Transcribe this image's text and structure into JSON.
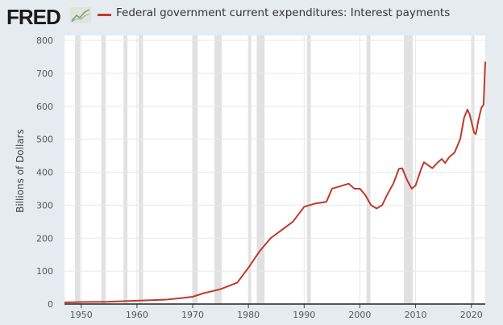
{
  "header": {
    "logo": "FRED",
    "logo_icon": "chart-trend-icon"
  },
  "chart_data": {
    "type": "line",
    "title": "",
    "xlabel": "",
    "ylabel": "Billions of Dollars",
    "xlim": [
      1947,
      2022.5
    ],
    "ylim": [
      0,
      800
    ],
    "grid": true,
    "legend_placement": "top",
    "yticks": [
      "0",
      "100",
      "200",
      "300",
      "400",
      "500",
      "600",
      "700",
      "800"
    ],
    "xticks": [
      "1950",
      "1960",
      "1970",
      "1980",
      "1990",
      "2000",
      "2010",
      "2020"
    ],
    "line_color": "#c0392b",
    "recession_color": "#e1e1e1",
    "recessions": [
      [
        1948.9,
        1949.8
      ],
      [
        1953.6,
        1954.4
      ],
      [
        1957.6,
        1958.3
      ],
      [
        1960.3,
        1961.1
      ],
      [
        1969.9,
        1970.9
      ],
      [
        1973.9,
        1975.2
      ],
      [
        1980.0,
        1980.5
      ],
      [
        1981.5,
        1982.9
      ],
      [
        1990.5,
        1991.2
      ],
      [
        2001.2,
        2001.9
      ],
      [
        2007.9,
        2009.5
      ],
      [
        2020.1,
        2020.4
      ]
    ],
    "series": [
      {
        "name": "Federal government current expenditures: Interest payments",
        "x": [
          1947,
          1950,
          1955,
          1960,
          1965,
          1968,
          1970,
          1972,
          1975,
          1978,
          1980,
          1982,
          1984,
          1986,
          1988,
          1990,
          1992,
          1994,
          1995,
          1997,
          1998,
          1999,
          2000,
          2001,
          2002,
          2003,
          2004,
          2005,
          2006,
          2007,
          2007.6,
          2008.5,
          2009.3,
          2010,
          2011,
          2011.5,
          2013,
          2014,
          2014.7,
          2015.3,
          2016,
          2017,
          2018,
          2018.7,
          2019.3,
          2019.7,
          2020.5,
          2020.8,
          2021.3,
          2021.8,
          2022.2,
          2022.5
        ],
        "values": [
          5,
          6,
          7,
          10,
          13,
          18,
          22,
          33,
          45,
          65,
          110,
          160,
          200,
          225,
          250,
          295,
          305,
          310,
          350,
          360,
          365,
          350,
          350,
          330,
          300,
          290,
          300,
          335,
          365,
          410,
          412,
          375,
          350,
          360,
          410,
          430,
          412,
          430,
          440,
          428,
          445,
          460,
          500,
          565,
          590,
          575,
          520,
          515,
          560,
          595,
          605,
          735
        ]
      }
    ]
  }
}
